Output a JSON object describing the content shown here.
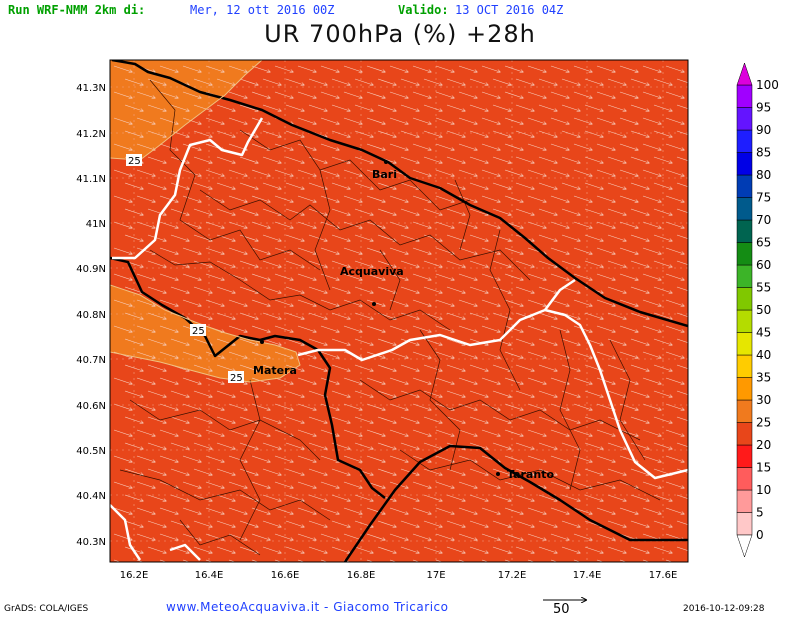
{
  "header": {
    "run_label": "Run WRF-NMM 2km di:",
    "run_date": "Mer, 12 ott 2016 00Z",
    "valid_label": "Valido:",
    "valid_date": "13 OCT 2016 04Z",
    "title": "UR 700hPa (%) +28h"
  },
  "map": {
    "lat_labels": [
      "41.3N",
      "41.2N",
      "41.1N",
      "41N",
      "40.9N",
      "40.8N",
      "40.7N",
      "40.6N",
      "40.5N",
      "40.4N",
      "40.3N"
    ],
    "lon_labels": [
      "16.2E",
      "16.4E",
      "16.6E",
      "16.8E",
      "17E",
      "17.2E",
      "17.4E",
      "17.6E"
    ],
    "cities": [
      {
        "name": "Bari"
      },
      {
        "name": "Acquaviva"
      },
      {
        "name": "Matera"
      },
      {
        "name": "Taranto"
      }
    ],
    "contour_labels": [
      "25",
      "25",
      "25"
    ],
    "colors": {
      "field_main": "#e8461a",
      "field_low": "#f07a1e",
      "contour": "#f0c080",
      "grid": "#f4a080"
    }
  },
  "colorbar": {
    "levels": [
      "0",
      "5",
      "10",
      "15",
      "20",
      "25",
      "30",
      "35",
      "40",
      "45",
      "50",
      "55",
      "60",
      "65",
      "70",
      "75",
      "80",
      "85",
      "90",
      "95",
      "100"
    ],
    "colors": [
      "#ffc8c8",
      "#ff9a9a",
      "#ff5c5c",
      "#ff1a1a",
      "#e8461a",
      "#f07a1e",
      "#ff9900",
      "#ffcc00",
      "#e6e600",
      "#b4dc00",
      "#80c800",
      "#3cb428",
      "#148c14",
      "#006450",
      "#005a8c",
      "#003cb4",
      "#0000e6",
      "#1e1eff",
      "#6414ff",
      "#a000ff",
      "#dc00dc"
    ]
  },
  "footer": {
    "left": "GrADS: COLA/IGES",
    "center": "www.MeteoAcquaviva.it - Giacomo Tricarico",
    "ref_vector": "50",
    "right": "2016-10-12-09:28"
  }
}
